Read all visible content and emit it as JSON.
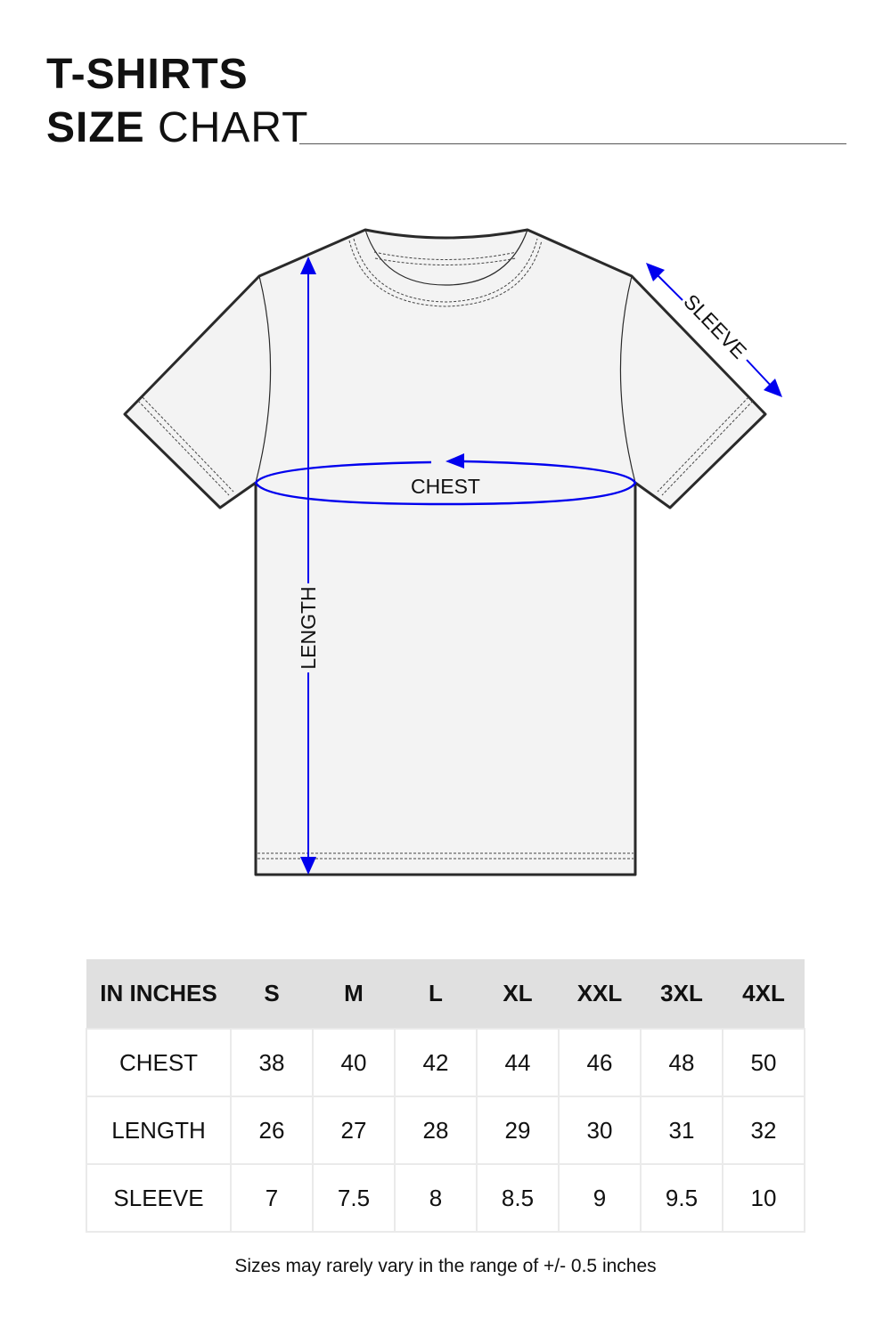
{
  "title": {
    "line1": "T-SHIRTS",
    "line2_bold": "SIZE",
    "line2_regular": "CHART"
  },
  "diagram": {
    "labels": {
      "chest": "CHEST",
      "length": "LENGTH",
      "sleeve": "SLEEVE"
    },
    "colors": {
      "measure": "#0000ee",
      "outline": "#2a2a2a",
      "fill": "#f3f3f3"
    }
  },
  "table": {
    "header": [
      "IN INCHES",
      "S",
      "M",
      "L",
      "XL",
      "XXL",
      "3XL",
      "4XL"
    ],
    "rows": [
      {
        "label": "CHEST",
        "values": [
          "38",
          "40",
          "42",
          "44",
          "46",
          "48",
          "50"
        ]
      },
      {
        "label": "LENGTH",
        "values": [
          "26",
          "27",
          "28",
          "29",
          "30",
          "31",
          "32"
        ]
      },
      {
        "label": "SLEEVE",
        "values": [
          "7",
          "7.5",
          "8",
          "8.5",
          "9",
          "9.5",
          "10"
        ]
      }
    ]
  },
  "note": "Sizes may rarely vary in the range of +/- 0.5 inches"
}
